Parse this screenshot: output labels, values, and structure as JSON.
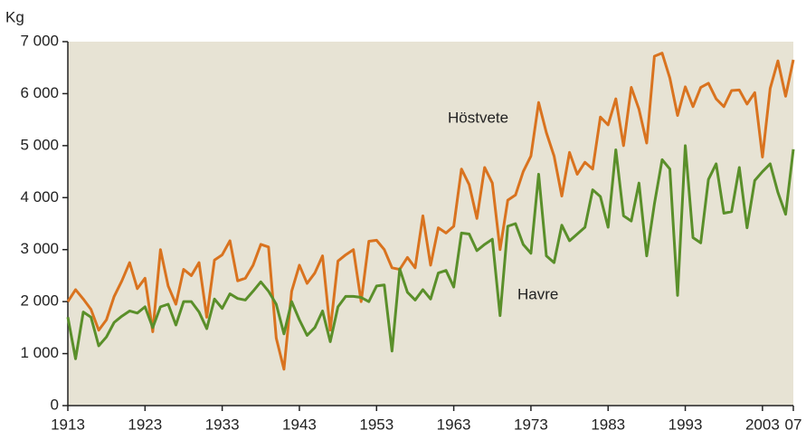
{
  "chart_data": {
    "type": "line",
    "y_label": "Kg",
    "x": [
      1913,
      1914,
      1915,
      1916,
      1917,
      1918,
      1919,
      1920,
      1921,
      1922,
      1923,
      1924,
      1925,
      1926,
      1927,
      1928,
      1929,
      1930,
      1931,
      1932,
      1933,
      1934,
      1935,
      1936,
      1937,
      1938,
      1939,
      1940,
      1941,
      1942,
      1943,
      1944,
      1945,
      1946,
      1947,
      1948,
      1949,
      1950,
      1951,
      1952,
      1953,
      1954,
      1955,
      1956,
      1957,
      1958,
      1959,
      1960,
      1961,
      1962,
      1963,
      1964,
      1965,
      1966,
      1967,
      1968,
      1969,
      1970,
      1971,
      1972,
      1973,
      1974,
      1975,
      1976,
      1977,
      1978,
      1979,
      1980,
      1981,
      1982,
      1983,
      1984,
      1985,
      1986,
      1987,
      1988,
      1989,
      1990,
      1991,
      1992,
      1993,
      1994,
      1995,
      1996,
      1997,
      1998,
      1999,
      2000,
      2001,
      2002,
      2003,
      2004,
      2005,
      2006,
      2007
    ],
    "series": [
      {
        "name": "Höstvete",
        "color": "#d9731f",
        "values": [
          2000,
          2230,
          2050,
          1850,
          1450,
          1650,
          2100,
          2400,
          2750,
          2250,
          2450,
          1420,
          3000,
          2300,
          1950,
          2620,
          2500,
          2750,
          1700,
          2800,
          2900,
          3170,
          2400,
          2450,
          2700,
          3100,
          3050,
          1300,
          700,
          2200,
          2700,
          2350,
          2550,
          2880,
          1450,
          2780,
          2900,
          3000,
          2000,
          3160,
          3180,
          3000,
          2650,
          2620,
          2850,
          2650,
          3650,
          2700,
          3420,
          3320,
          3450,
          4550,
          4250,
          3600,
          4580,
          4280,
          3000,
          3950,
          4050,
          4500,
          4800,
          5830,
          5250,
          4800,
          4030,
          4870,
          4450,
          4680,
          4550,
          5550,
          5400,
          5900,
          5000,
          6120,
          5700,
          5050,
          6720,
          6780,
          6300,
          5580,
          6130,
          5750,
          6120,
          6200,
          5900,
          5750,
          6060,
          6070,
          5800,
          6020,
          4780,
          6100,
          6630,
          5950,
          6650
        ]
      },
      {
        "name": "Havre",
        "color": "#5a8f2a",
        "values": [
          1700,
          900,
          1800,
          1700,
          1150,
          1320,
          1600,
          1720,
          1820,
          1780,
          1900,
          1500,
          1900,
          1950,
          1550,
          2000,
          2000,
          1800,
          1480,
          2050,
          1870,
          2150,
          2060,
          2030,
          2200,
          2380,
          2200,
          1950,
          1380,
          2000,
          1650,
          1350,
          1500,
          1820,
          1230,
          1900,
          2100,
          2100,
          2080,
          2000,
          2300,
          2320,
          1050,
          2630,
          2180,
          2030,
          2230,
          2050,
          2550,
          2600,
          2280,
          3320,
          3300,
          2980,
          3100,
          3200,
          1730,
          3450,
          3500,
          3100,
          2930,
          4450,
          2880,
          2750,
          3470,
          3170,
          3300,
          3430,
          4150,
          4020,
          3430,
          4920,
          3650,
          3550,
          4280,
          2880,
          3880,
          4730,
          4550,
          2120,
          5000,
          3230,
          3130,
          4350,
          4650,
          3700,
          3730,
          4580,
          3420,
          4330,
          4500,
          4650,
          4100,
          3680,
          4930
        ]
      }
    ],
    "xlim": [
      1913,
      2007
    ],
    "xticks": [
      1913,
      1923,
      1933,
      1943,
      1953,
      1963,
      1973,
      1983,
      1993,
      2003,
      {
        "value": 2007,
        "label": "07"
      }
    ],
    "ylim": [
      0,
      7000
    ],
    "yticks": [
      0,
      {
        "value": 1000,
        "label": "1 000"
      },
      {
        "value": 2000,
        "label": "2 000"
      },
      {
        "value": 3000,
        "label": "3 000"
      },
      {
        "value": 4000,
        "label": "4 000"
      },
      {
        "value": 5000,
        "label": "5 000"
      },
      {
        "value": 6000,
        "label": "6 000"
      },
      {
        "value": 7000,
        "label": "7 000"
      }
    ]
  }
}
